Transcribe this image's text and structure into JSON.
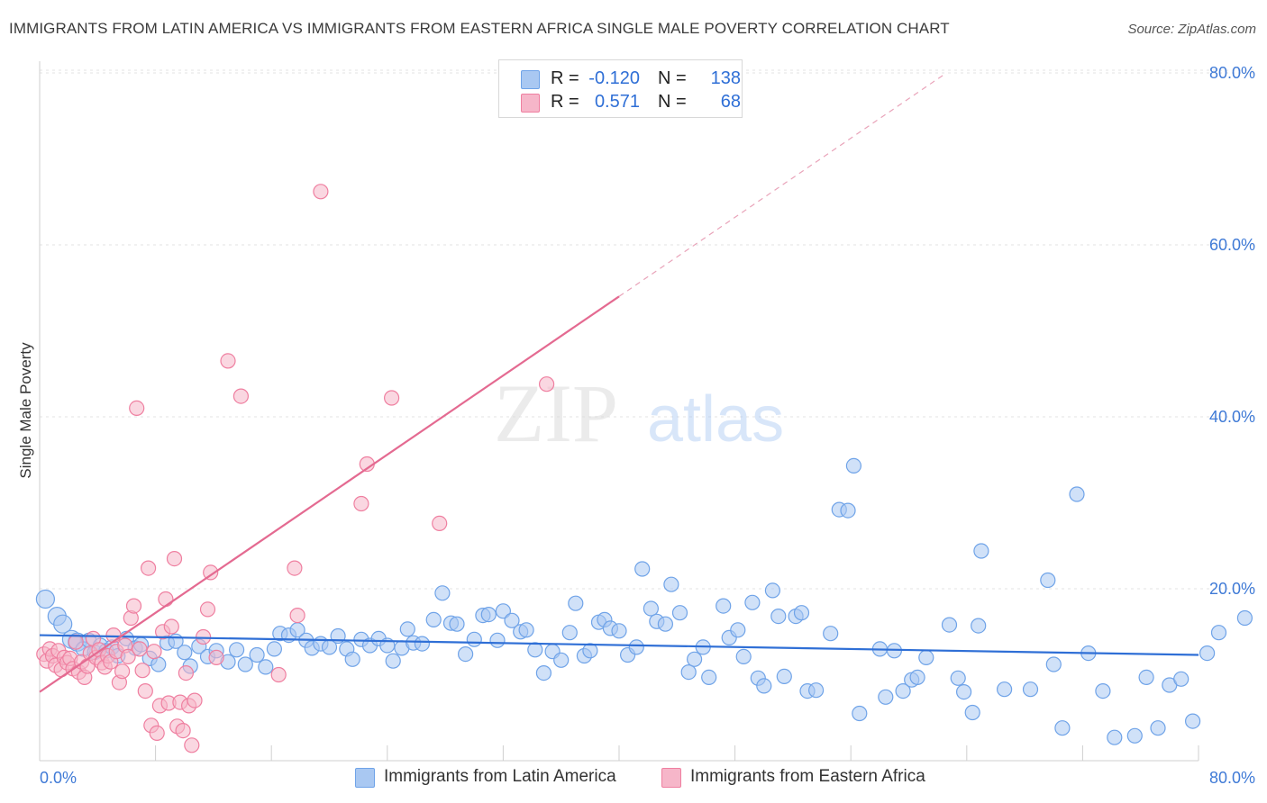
{
  "title": "IMMIGRANTS FROM LATIN AMERICA VS IMMIGRANTS FROM EASTERN AFRICA SINGLE MALE POVERTY CORRELATION CHART",
  "source": "Source: ZipAtlas.com",
  "watermark": {
    "zip": "ZIP",
    "atlas": "atlas"
  },
  "legend": {
    "rows": [
      {
        "r_label": "R =",
        "r_value": "-0.120",
        "n_label": "N =",
        "n_value": "138",
        "color": "#a9c8f2"
      },
      {
        "r_label": "R =",
        "r_value": "0.571",
        "n_label": "N =",
        "n_value": "68",
        "color": "#f6b6c9"
      }
    ]
  },
  "bottom_legend": {
    "series1": "Immigrants from Latin America",
    "series2": "Immigrants from Eastern Africa"
  },
  "chart_data": {
    "type": "scatter",
    "title": "IMMIGRANTS FROM LATIN AMERICA VS IMMIGRANTS FROM EASTERN AFRICA SINGLE MALE POVERTY CORRELATION CHART",
    "xlabel": "",
    "ylabel": "Single Male Poverty",
    "xlim": [
      0,
      80
    ],
    "ylim": [
      0,
      80
    ],
    "x_tick_labels": [
      "0.0%",
      "80.0%"
    ],
    "y_tick_labels": [
      "20.0%",
      "40.0%",
      "60.0%",
      "80.0%"
    ],
    "y_ticks": [
      20,
      40,
      60,
      80
    ],
    "grid": true,
    "legend_position": "top-center",
    "series": [
      {
        "name": "Immigrants from Latin America",
        "color": "#6fa3e8",
        "fill": "#a9c8f2",
        "r": -0.12,
        "n": 138,
        "trend": {
          "x": [
            0,
            80
          ],
          "y": [
            14.6,
            12.3
          ]
        },
        "points": [
          [
            0.4,
            18.8
          ],
          [
            1.2,
            16.8
          ],
          [
            1.6,
            15.9
          ],
          [
            2.2,
            14.1
          ],
          [
            2.6,
            13.8
          ],
          [
            3.0,
            13.0
          ],
          [
            3.4,
            14.0
          ],
          [
            3.8,
            12.6
          ],
          [
            4.2,
            13.4
          ],
          [
            4.6,
            12.8
          ],
          [
            5.0,
            13.2
          ],
          [
            5.4,
            12.2
          ],
          [
            6.0,
            14.2
          ],
          [
            6.6,
            13.1
          ],
          [
            7.0,
            13.5
          ],
          [
            7.6,
            11.9
          ],
          [
            8.2,
            11.2
          ],
          [
            8.8,
            13.7
          ],
          [
            9.4,
            13.9
          ],
          [
            10.0,
            12.6
          ],
          [
            10.4,
            11.0
          ],
          [
            11.0,
            13.3
          ],
          [
            11.6,
            12.1
          ],
          [
            12.2,
            12.8
          ],
          [
            13.0,
            11.5
          ],
          [
            13.6,
            12.9
          ],
          [
            14.2,
            11.2
          ],
          [
            15.0,
            12.3
          ],
          [
            15.6,
            10.9
          ],
          [
            16.2,
            13.0
          ],
          [
            16.6,
            14.8
          ],
          [
            17.2,
            14.6
          ],
          [
            17.8,
            15.2
          ],
          [
            18.4,
            14.0
          ],
          [
            18.8,
            13.1
          ],
          [
            19.4,
            13.6
          ],
          [
            20.0,
            13.2
          ],
          [
            20.6,
            14.5
          ],
          [
            21.2,
            13.0
          ],
          [
            21.6,
            11.8
          ],
          [
            22.2,
            14.1
          ],
          [
            22.8,
            13.4
          ],
          [
            23.4,
            14.2
          ],
          [
            24.0,
            13.4
          ],
          [
            24.4,
            11.6
          ],
          [
            25.0,
            13.1
          ],
          [
            25.4,
            15.3
          ],
          [
            25.8,
            13.7
          ],
          [
            26.4,
            13.6
          ],
          [
            27.2,
            16.4
          ],
          [
            27.8,
            19.5
          ],
          [
            28.4,
            16.0
          ],
          [
            28.8,
            15.9
          ],
          [
            29.4,
            12.4
          ],
          [
            30.0,
            14.1
          ],
          [
            30.6,
            16.9
          ],
          [
            31.0,
            17.0
          ],
          [
            31.6,
            14.0
          ],
          [
            32.0,
            17.4
          ],
          [
            32.6,
            16.3
          ],
          [
            33.2,
            15.0
          ],
          [
            33.6,
            15.2
          ],
          [
            34.2,
            12.9
          ],
          [
            34.8,
            10.2
          ],
          [
            35.4,
            12.7
          ],
          [
            36.0,
            11.7
          ],
          [
            36.6,
            14.9
          ],
          [
            37.0,
            18.3
          ],
          [
            37.6,
            12.2
          ],
          [
            38.0,
            12.8
          ],
          [
            38.6,
            16.1
          ],
          [
            39.0,
            16.4
          ],
          [
            39.4,
            15.4
          ],
          [
            40.0,
            15.1
          ],
          [
            40.6,
            12.3
          ],
          [
            41.2,
            13.2
          ],
          [
            41.6,
            22.3
          ],
          [
            42.2,
            17.7
          ],
          [
            42.6,
            16.2
          ],
          [
            43.2,
            15.9
          ],
          [
            43.6,
            20.5
          ],
          [
            44.2,
            17.2
          ],
          [
            44.8,
            10.3
          ],
          [
            45.2,
            11.8
          ],
          [
            45.8,
            13.2
          ],
          [
            46.2,
            9.7
          ],
          [
            47.2,
            18.0
          ],
          [
            47.6,
            14.3
          ],
          [
            48.2,
            15.2
          ],
          [
            48.6,
            12.1
          ],
          [
            49.2,
            18.4
          ],
          [
            49.6,
            9.6
          ],
          [
            50.0,
            8.7
          ],
          [
            50.6,
            19.8
          ],
          [
            51.0,
            16.8
          ],
          [
            51.4,
            9.8
          ],
          [
            52.2,
            16.8
          ],
          [
            52.6,
            17.2
          ],
          [
            53.0,
            8.1
          ],
          [
            53.6,
            8.2
          ],
          [
            54.6,
            14.8
          ],
          [
            55.2,
            29.2
          ],
          [
            55.8,
            29.1
          ],
          [
            56.2,
            34.3
          ],
          [
            56.6,
            5.5
          ],
          [
            58.0,
            13.0
          ],
          [
            58.4,
            7.4
          ],
          [
            59.0,
            12.8
          ],
          [
            59.6,
            8.1
          ],
          [
            60.2,
            9.4
          ],
          [
            60.6,
            9.7
          ],
          [
            61.2,
            12.0
          ],
          [
            62.8,
            15.8
          ],
          [
            63.4,
            9.6
          ],
          [
            63.8,
            8.0
          ],
          [
            64.4,
            5.6
          ],
          [
            64.8,
            15.7
          ],
          [
            65.0,
            24.4
          ],
          [
            66.6,
            8.3
          ],
          [
            68.4,
            8.3
          ],
          [
            69.6,
            21.0
          ],
          [
            70.0,
            11.2
          ],
          [
            70.6,
            3.8
          ],
          [
            71.6,
            31.0
          ],
          [
            72.4,
            12.5
          ],
          [
            73.4,
            8.1
          ],
          [
            74.2,
            2.7
          ],
          [
            75.6,
            2.9
          ],
          [
            76.4,
            9.7
          ],
          [
            77.2,
            3.8
          ],
          [
            78.0,
            8.8
          ],
          [
            78.8,
            9.5
          ],
          [
            79.6,
            4.6
          ],
          [
            80.6,
            12.5
          ],
          [
            81.4,
            14.9
          ],
          [
            83.2,
            16.6
          ]
        ]
      },
      {
        "name": "Immigrants from Eastern Africa",
        "color": "#ef7fa0",
        "fill": "#f6b6c9",
        "r": 0.571,
        "n": 68,
        "trend": {
          "x": [
            0,
            40
          ],
          "y": [
            8.0,
            54.0
          ]
        },
        "trend_dashed": {
          "x": [
            40,
            62.6
          ],
          "y": [
            54.0,
            80.0
          ]
        },
        "points": [
          [
            0.3,
            12.4
          ],
          [
            0.5,
            11.6
          ],
          [
            0.7,
            13.0
          ],
          [
            0.9,
            12.2
          ],
          [
            1.1,
            11.1
          ],
          [
            1.3,
            12.8
          ],
          [
            1.5,
            10.6
          ],
          [
            1.7,
            12.0
          ],
          [
            1.9,
            11.4
          ],
          [
            2.1,
            11.9
          ],
          [
            2.3,
            10.7
          ],
          [
            2.5,
            13.8
          ],
          [
            2.7,
            10.3
          ],
          [
            2.9,
            11.5
          ],
          [
            3.1,
            9.7
          ],
          [
            3.3,
            11.0
          ],
          [
            3.5,
            12.5
          ],
          [
            3.7,
            14.2
          ],
          [
            3.9,
            12.0
          ],
          [
            4.1,
            12.9
          ],
          [
            4.3,
            11.4
          ],
          [
            4.5,
            10.9
          ],
          [
            4.7,
            12.2
          ],
          [
            4.9,
            11.5
          ],
          [
            5.1,
            14.6
          ],
          [
            5.3,
            12.7
          ],
          [
            5.5,
            9.1
          ],
          [
            5.7,
            10.4
          ],
          [
            5.9,
            13.4
          ],
          [
            6.1,
            12.1
          ],
          [
            6.3,
            16.6
          ],
          [
            6.5,
            18.0
          ],
          [
            6.7,
            41.0
          ],
          [
            6.9,
            13.0
          ],
          [
            7.1,
            10.5
          ],
          [
            7.3,
            8.1
          ],
          [
            7.5,
            22.4
          ],
          [
            7.7,
            4.1
          ],
          [
            7.9,
            12.7
          ],
          [
            8.1,
            3.2
          ],
          [
            8.3,
            6.4
          ],
          [
            8.5,
            15.0
          ],
          [
            8.7,
            18.8
          ],
          [
            8.9,
            6.7
          ],
          [
            9.1,
            15.6
          ],
          [
            9.3,
            23.5
          ],
          [
            9.5,
            4.0
          ],
          [
            9.7,
            6.8
          ],
          [
            9.9,
            3.5
          ],
          [
            10.1,
            10.2
          ],
          [
            10.3,
            6.4
          ],
          [
            10.5,
            1.8
          ],
          [
            10.7,
            7.0
          ],
          [
            11.3,
            14.4
          ],
          [
            11.6,
            17.6
          ],
          [
            11.8,
            21.9
          ],
          [
            12.2,
            12.0
          ],
          [
            13.0,
            46.5
          ],
          [
            13.9,
            42.4
          ],
          [
            16.5,
            10.0
          ],
          [
            17.6,
            22.4
          ],
          [
            17.8,
            16.9
          ],
          [
            19.4,
            66.2
          ],
          [
            22.2,
            29.9
          ],
          [
            22.6,
            34.5
          ],
          [
            24.3,
            42.2
          ],
          [
            27.6,
            27.6
          ],
          [
            35.0,
            43.8
          ]
        ]
      }
    ]
  }
}
